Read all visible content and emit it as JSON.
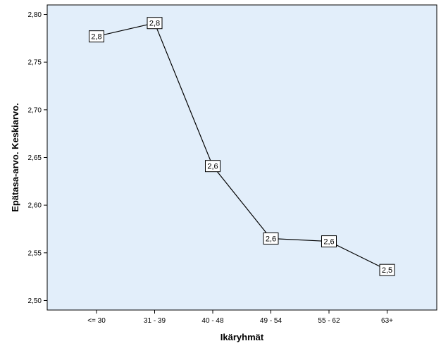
{
  "chart_data": {
    "type": "line",
    "title": "",
    "xlabel": "Ikäryhmät",
    "ylabel": "Epätasa-arvo. Keskiarvo.",
    "categories": [
      "<= 30",
      "31 - 39",
      "40 - 48",
      "49 - 54",
      "55 - 62",
      "63+"
    ],
    "series": [
      {
        "values": [
          2.777,
          2.791,
          2.641,
          2.565,
          2.562,
          2.532
        ],
        "data_labels": [
          "2,8",
          "2,8",
          "2,6",
          "2,6",
          "2,6",
          "2,5"
        ]
      }
    ],
    "ylim": [
      2.49,
      2.81
    ],
    "yticks": [
      2.5,
      2.55,
      2.6,
      2.65,
      2.7,
      2.75,
      2.8
    ],
    "ytick_labels": [
      "2,50",
      "2,55",
      "2,60",
      "2,65",
      "2,70",
      "2,75",
      "2,80"
    ],
    "grid": false,
    "legend": "none",
    "colors": {
      "plot_background": "#e2eefa",
      "line": "#000000",
      "marker_fill": "#ffffff",
      "axis": "#000000"
    }
  }
}
